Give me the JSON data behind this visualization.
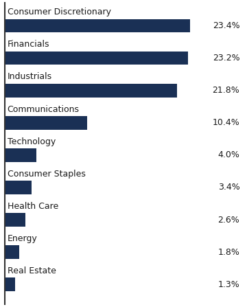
{
  "categories": [
    "Real Estate",
    "Energy",
    "Health Care",
    "Consumer Staples",
    "Technology",
    "Communications",
    "Industrials",
    "Financials",
    "Consumer Discretionary"
  ],
  "values": [
    1.3,
    1.8,
    2.6,
    3.4,
    4.0,
    10.4,
    21.8,
    23.2,
    23.4
  ],
  "labels": [
    "1.3%",
    "1.8%",
    "2.6%",
    "3.4%",
    "4.0%",
    "10.4%",
    "21.8%",
    "23.2%",
    "23.4%"
  ],
  "bar_color": "#1a3055",
  "background_color": "#ffffff",
  "label_color": "#1a1a1a",
  "category_fontsize": 9.0,
  "value_fontsize": 9.0,
  "bar_height": 0.42,
  "xlim": [
    0,
    30
  ]
}
